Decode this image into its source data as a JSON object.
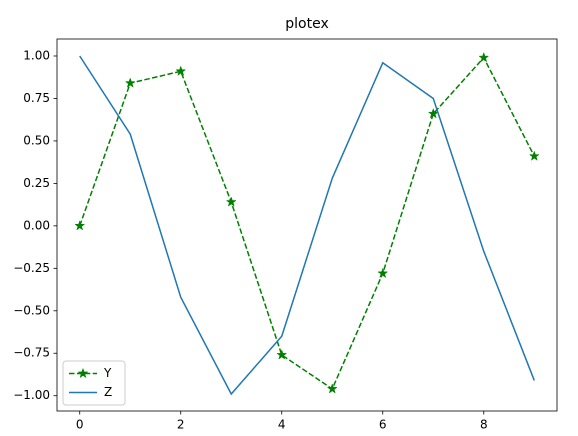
{
  "chart_data": {
    "type": "line",
    "title": "plotex",
    "x": [
      0,
      1,
      2,
      3,
      4,
      5,
      6,
      7,
      8,
      9
    ],
    "series": [
      {
        "name": "Y",
        "color": "#008000",
        "linestyle": "dashed",
        "marker": "star",
        "values": [
          0.0,
          0.84,
          0.91,
          0.14,
          -0.76,
          -0.96,
          -0.28,
          0.66,
          0.99,
          0.41
        ]
      },
      {
        "name": "Z",
        "color": "#1f77b4",
        "linestyle": "solid",
        "marker": null,
        "values": [
          1.0,
          0.54,
          -0.42,
          -0.99,
          -0.65,
          0.28,
          0.96,
          0.75,
          -0.15,
          -0.91
        ]
      }
    ],
    "xlim": [
      -0.45,
      9.45
    ],
    "xticks": [
      0,
      2,
      4,
      6,
      8
    ],
    "ylim": [
      -1.09,
      1.1
    ],
    "yticks": [
      {
        "value": -1.0,
        "label": "−1.00"
      },
      {
        "value": -0.75,
        "label": "−0.75"
      },
      {
        "value": -0.5,
        "label": "−0.50"
      },
      {
        "value": -0.25,
        "label": "−0.25"
      },
      {
        "value": 0.0,
        "label": "0.00"
      },
      {
        "value": 0.25,
        "label": "0.25"
      },
      {
        "value": 0.5,
        "label": "0.50"
      },
      {
        "value": 0.75,
        "label": "0.75"
      },
      {
        "value": 1.0,
        "label": "1.00"
      }
    ],
    "grid": false,
    "legend": "lower left"
  }
}
